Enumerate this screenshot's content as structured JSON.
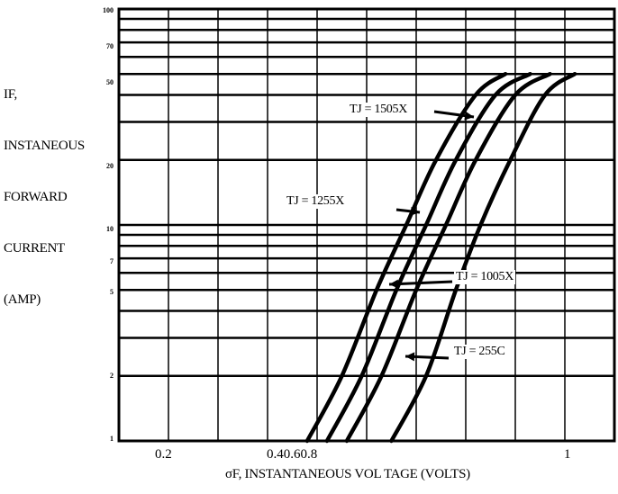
{
  "chart_data": {
    "type": "line",
    "title": "",
    "ylabel_lines": [
      "IF,",
      "INSTANEOUS",
      "FORWARD",
      "CURRENT",
      "(AMP)"
    ],
    "xlabel": "σF, INSTANTANEOUS VOL TAGE (VOLTS)",
    "y_scale": "log",
    "ylim": [
      1,
      100
    ],
    "xlim": [
      0.1,
      1.1
    ],
    "grid": true,
    "y_ticks": [
      {
        "value": 1,
        "label": "1"
      },
      {
        "value": 2,
        "label": "2"
      },
      {
        "value": 5,
        "label": "5"
      },
      {
        "value": 7,
        "label": "7"
      },
      {
        "value": 10,
        "label": "10"
      },
      {
        "value": 20,
        "label": "20"
      },
      {
        "value": 50,
        "label": "50"
      },
      {
        "value": 70,
        "label": "70"
      },
      {
        "value": 100,
        "label": "100"
      }
    ],
    "x_ticks": [
      {
        "value": 0.2,
        "label": "0.2"
      },
      {
        "value": 0.6,
        "label": "0.40.60.8"
      },
      {
        "value": 1.0,
        "label": "1"
      }
    ],
    "series": [
      {
        "name": "TJ = 1505X",
        "points": [
          [
            0.48,
            1
          ],
          [
            0.55,
            2
          ],
          [
            0.62,
            5
          ],
          [
            0.68,
            10
          ],
          [
            0.74,
            20
          ],
          [
            0.82,
            40
          ],
          [
            0.88,
            50
          ]
        ]
      },
      {
        "name": "TJ = 1255X",
        "points": [
          [
            0.52,
            1
          ],
          [
            0.59,
            2
          ],
          [
            0.66,
            5
          ],
          [
            0.72,
            10
          ],
          [
            0.78,
            20
          ],
          [
            0.86,
            40
          ],
          [
            0.93,
            50
          ]
        ]
      },
      {
        "name": "TJ = 1005X",
        "points": [
          [
            0.56,
            1
          ],
          [
            0.63,
            2
          ],
          [
            0.7,
            5
          ],
          [
            0.76,
            10
          ],
          [
            0.82,
            20
          ],
          [
            0.9,
            40
          ],
          [
            0.97,
            50
          ]
        ]
      },
      {
        "name": "TJ = 255C",
        "points": [
          [
            0.65,
            1
          ],
          [
            0.72,
            2
          ],
          [
            0.78,
            5
          ],
          [
            0.83,
            10
          ],
          [
            0.89,
            20
          ],
          [
            0.96,
            40
          ],
          [
            1.02,
            50
          ]
        ]
      }
    ]
  }
}
